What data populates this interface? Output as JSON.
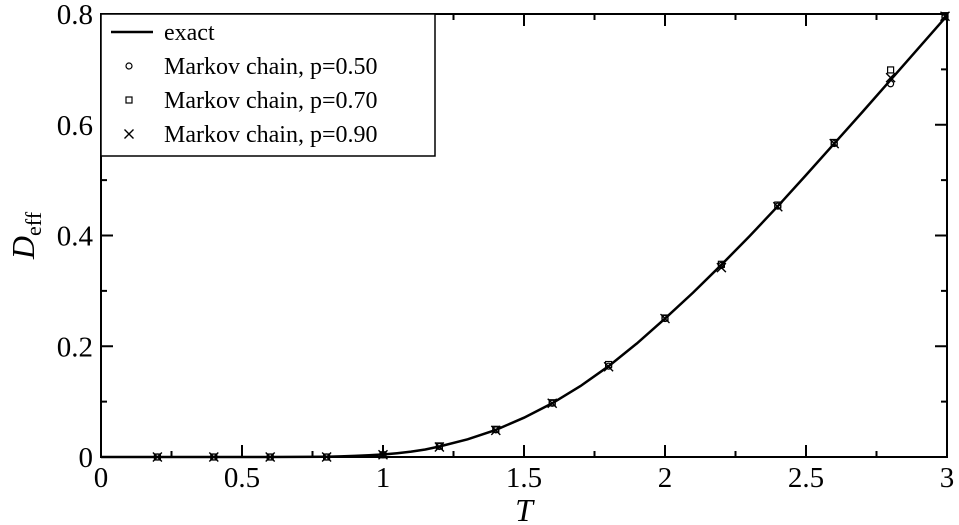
{
  "chart_data": {
    "type": "scatter",
    "title": "",
    "xlabel": "T",
    "ylabel_main": "D",
    "ylabel_sub": "eff",
    "xlim": [
      0,
      3
    ],
    "ylim": [
      0,
      0.8
    ],
    "xticks": [
      0,
      0.5,
      1,
      1.5,
      2,
      2.5,
      3
    ],
    "xtick_labels": [
      "0",
      "0.5",
      "1",
      "1.5",
      "2",
      "2.5",
      "3"
    ],
    "yticks": [
      0,
      0.2,
      0.4,
      0.6,
      0.8
    ],
    "ytick_labels": [
      "0",
      "0.2",
      "0.4",
      "0.6",
      "0.8"
    ],
    "grid": false,
    "legend_position": "top-left",
    "exact_curve": {
      "name": "exact",
      "x": [
        0,
        0.6,
        0.7,
        0.8,
        0.85,
        0.9,
        0.95,
        1.0,
        1.05,
        1.1,
        1.15,
        1.2,
        1.3,
        1.4,
        1.5,
        1.6,
        1.7,
        1.8,
        1.9,
        2.0,
        2.1,
        2.2,
        2.3,
        2.4,
        2.5,
        2.6,
        2.7,
        2.8,
        2.9,
        3.0
      ],
      "y": [
        0,
        0,
        0.0002,
        0.0006,
        0.0011,
        0.0019,
        0.003,
        0.0046,
        0.0068,
        0.0098,
        0.0135,
        0.019,
        0.032,
        0.049,
        0.071,
        0.097,
        0.128,
        0.164,
        0.205,
        0.25,
        0.297,
        0.347,
        0.399,
        0.453,
        0.509,
        0.566,
        0.623,
        0.681,
        0.739,
        0.797
      ]
    },
    "series": [
      {
        "name": "Markov chain, p=0.50",
        "marker": "circle",
        "x": [
          0.2,
          0.4,
          0.6,
          0.8,
          1.0,
          1.2,
          1.4,
          1.6,
          1.8,
          2.0,
          2.2,
          2.4,
          2.6,
          2.8,
          3.0
        ],
        "y": [
          0,
          0,
          0,
          0,
          0.004,
          0.019,
          0.049,
          0.097,
          0.164,
          0.25,
          0.346,
          0.453,
          0.566,
          0.674,
          0.795
        ]
      },
      {
        "name": "Markov chain, p=0.70",
        "marker": "square",
        "x": [
          0.2,
          0.4,
          0.6,
          0.8,
          1.0,
          1.2,
          1.4,
          1.6,
          1.8,
          2.0,
          2.2,
          2.4,
          2.6,
          2.8,
          3.0
        ],
        "y": [
          0,
          0,
          0,
          0,
          0.004,
          0.02,
          0.05,
          0.098,
          0.167,
          0.251,
          0.348,
          0.455,
          0.568,
          0.699,
          0.797
        ]
      },
      {
        "name": "Markov chain, p=0.90",
        "marker": "cross",
        "x": [
          0.2,
          0.4,
          0.6,
          0.8,
          1.0,
          1.2,
          1.4,
          1.6,
          1.8,
          2.0,
          2.2,
          2.4,
          2.6,
          2.8,
          3.0
        ],
        "y": [
          0,
          0,
          0,
          0,
          0.004,
          0.018,
          0.048,
          0.097,
          0.163,
          0.25,
          0.342,
          0.452,
          0.566,
          0.685,
          0.796
        ]
      }
    ]
  }
}
